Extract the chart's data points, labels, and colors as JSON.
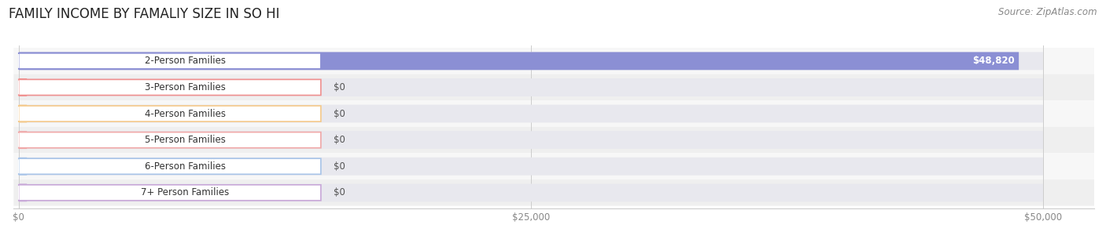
{
  "title": "FAMILY INCOME BY FAMALIY SIZE IN SO HI",
  "source": "Source: ZipAtlas.com",
  "categories": [
    "2-Person Families",
    "3-Person Families",
    "4-Person Families",
    "5-Person Families",
    "6-Person Families",
    "7+ Person Families"
  ],
  "values": [
    48820,
    0,
    0,
    0,
    0,
    0
  ],
  "max_value": 50000,
  "bar_colors": [
    "#8b8fd4",
    "#f0908f",
    "#f5c98a",
    "#f0a8a8",
    "#a8c4e8",
    "#c8a8d8"
  ],
  "value_labels": [
    "$48,820",
    "$0",
    "$0",
    "$0",
    "$0",
    "$0"
  ],
  "xtick_labels": [
    "$0",
    "$25,000",
    "$50,000"
  ],
  "xtick_values": [
    0,
    25000,
    50000
  ],
  "background_color": "#ffffff",
  "row_bg_even": "#f7f7f7",
  "row_bg_odd": "#efefef",
  "bar_bg": "#e8e8ee",
  "title_fontsize": 12,
  "source_fontsize": 8.5,
  "label_fontsize": 8.5
}
